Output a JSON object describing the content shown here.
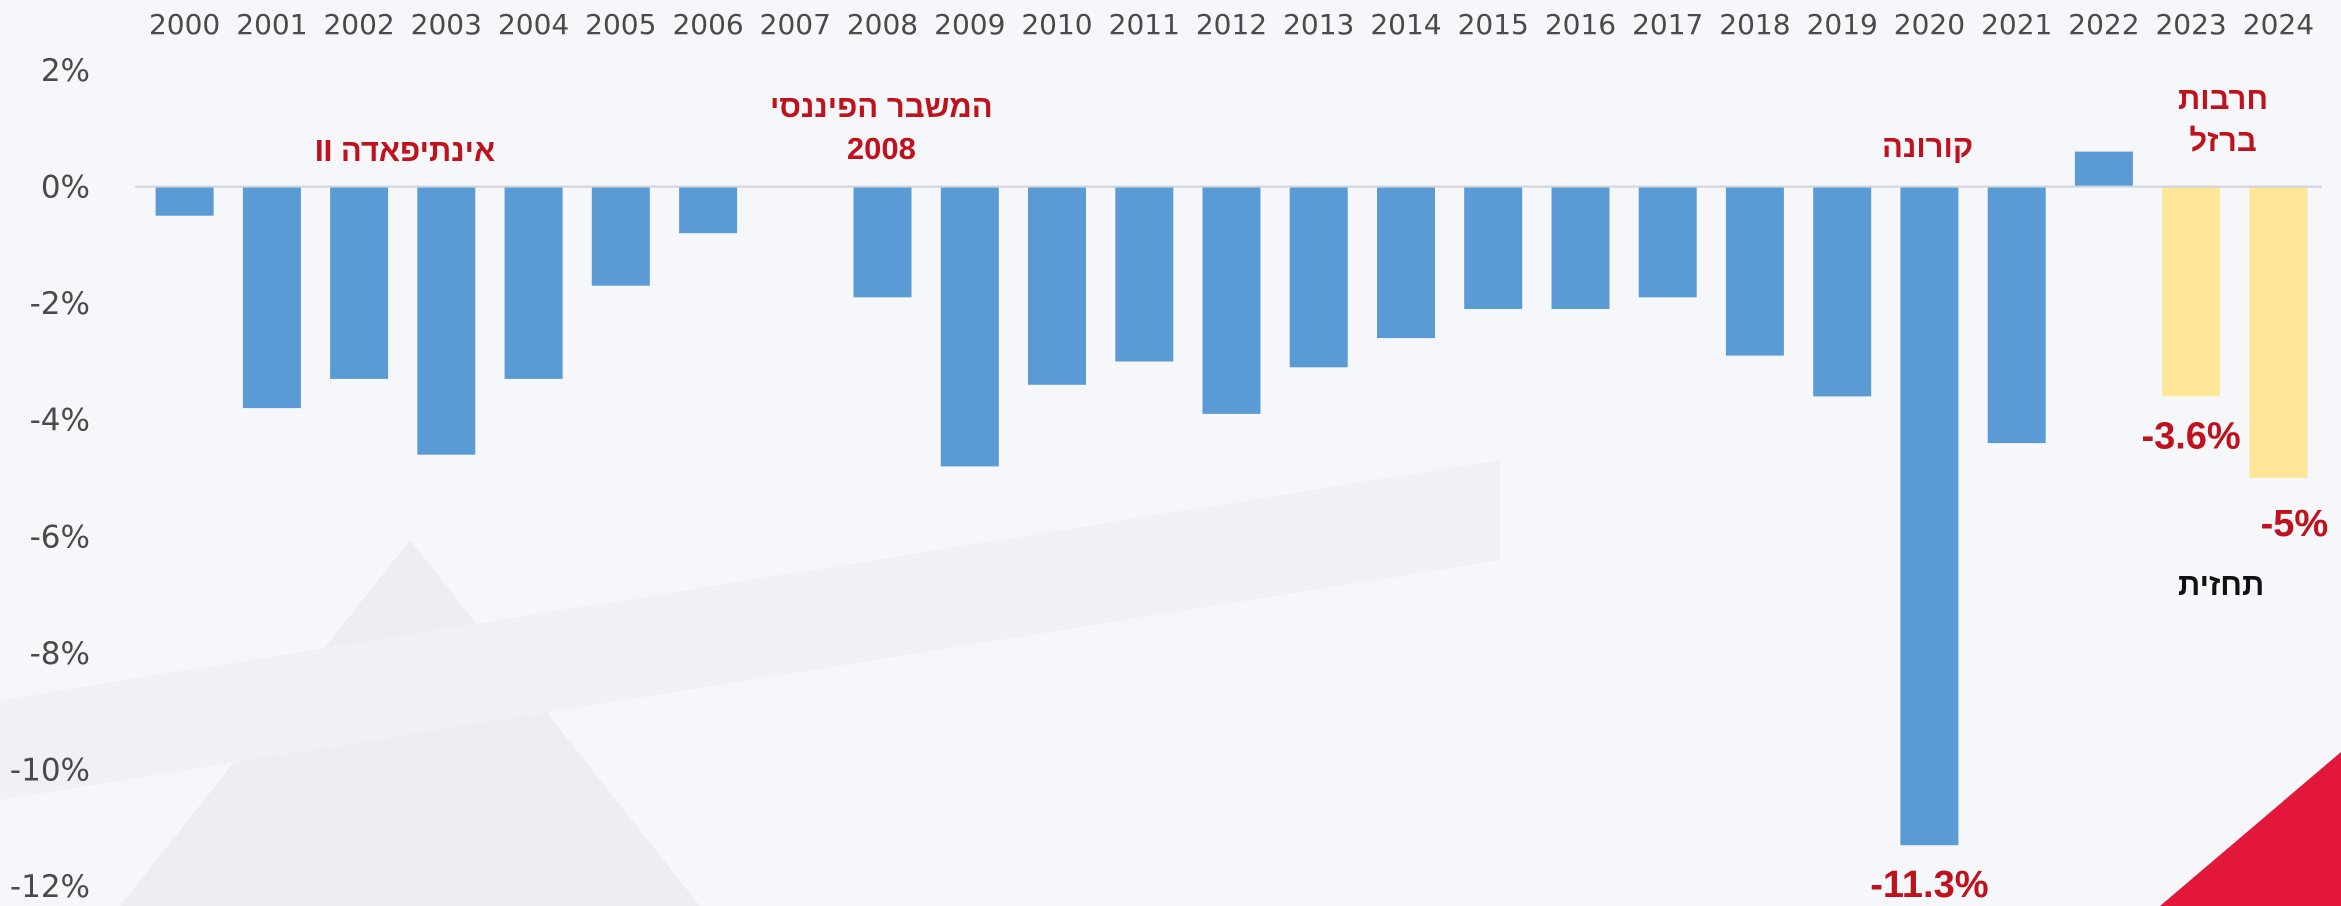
{
  "colors": {
    "bar": "#5b9bd5",
    "forecast_bar": "#ffe699",
    "annotation": "#c0121c",
    "forecast_label": "#111111",
    "corner_accent": "#e3173a"
  },
  "chart_data": {
    "type": "bar",
    "categories": [
      "2000",
      "2001",
      "2002",
      "2003",
      "2004",
      "2005",
      "2006",
      "2007",
      "2008",
      "2009",
      "2010",
      "2011",
      "2012",
      "2013",
      "2014",
      "2015",
      "2016",
      "2017",
      "2018",
      "2019",
      "2020",
      "2021",
      "2022",
      "2023",
      "2024"
    ],
    "values": [
      -0.5,
      -3.8,
      -3.3,
      -4.6,
      -3.3,
      -1.7,
      -0.8,
      null,
      -1.9,
      -4.8,
      -3.4,
      -3.0,
      -3.9,
      -3.1,
      -2.6,
      -2.1,
      -2.1,
      -1.9,
      -2.9,
      -3.6,
      -11.3,
      -4.4,
      0.6,
      -3.6,
      -5.0
    ],
    "forecast_categories": [
      "2023",
      "2024"
    ],
    "ylim": [
      -12,
      2
    ],
    "yticks": [
      "2%",
      "0%",
      "-2%",
      "-4%",
      "-6%",
      "-8%",
      "-10%",
      "-12%"
    ],
    "ytick_values": [
      2,
      0,
      -2,
      -4,
      -6,
      -8,
      -10,
      -12
    ],
    "xaxis_position": "top",
    "grid": false,
    "title": "",
    "xlabel": "",
    "ylabel": "",
    "data_labels": [
      {
        "category": "2020",
        "text": "-11.3%"
      },
      {
        "category": "2023",
        "text": "-3.6%"
      },
      {
        "category": "2024",
        "text": "-5%"
      }
    ],
    "annotations": {
      "intifada": "אינתיפאדה II",
      "financial_crisis_line1": "המשבר הפיננסי",
      "financial_crisis_line2": "2008",
      "corona": "קורונה",
      "iron_swords_line1": "חרבות",
      "iron_swords_line2": "ברזל",
      "forecast": "תחזית"
    }
  }
}
